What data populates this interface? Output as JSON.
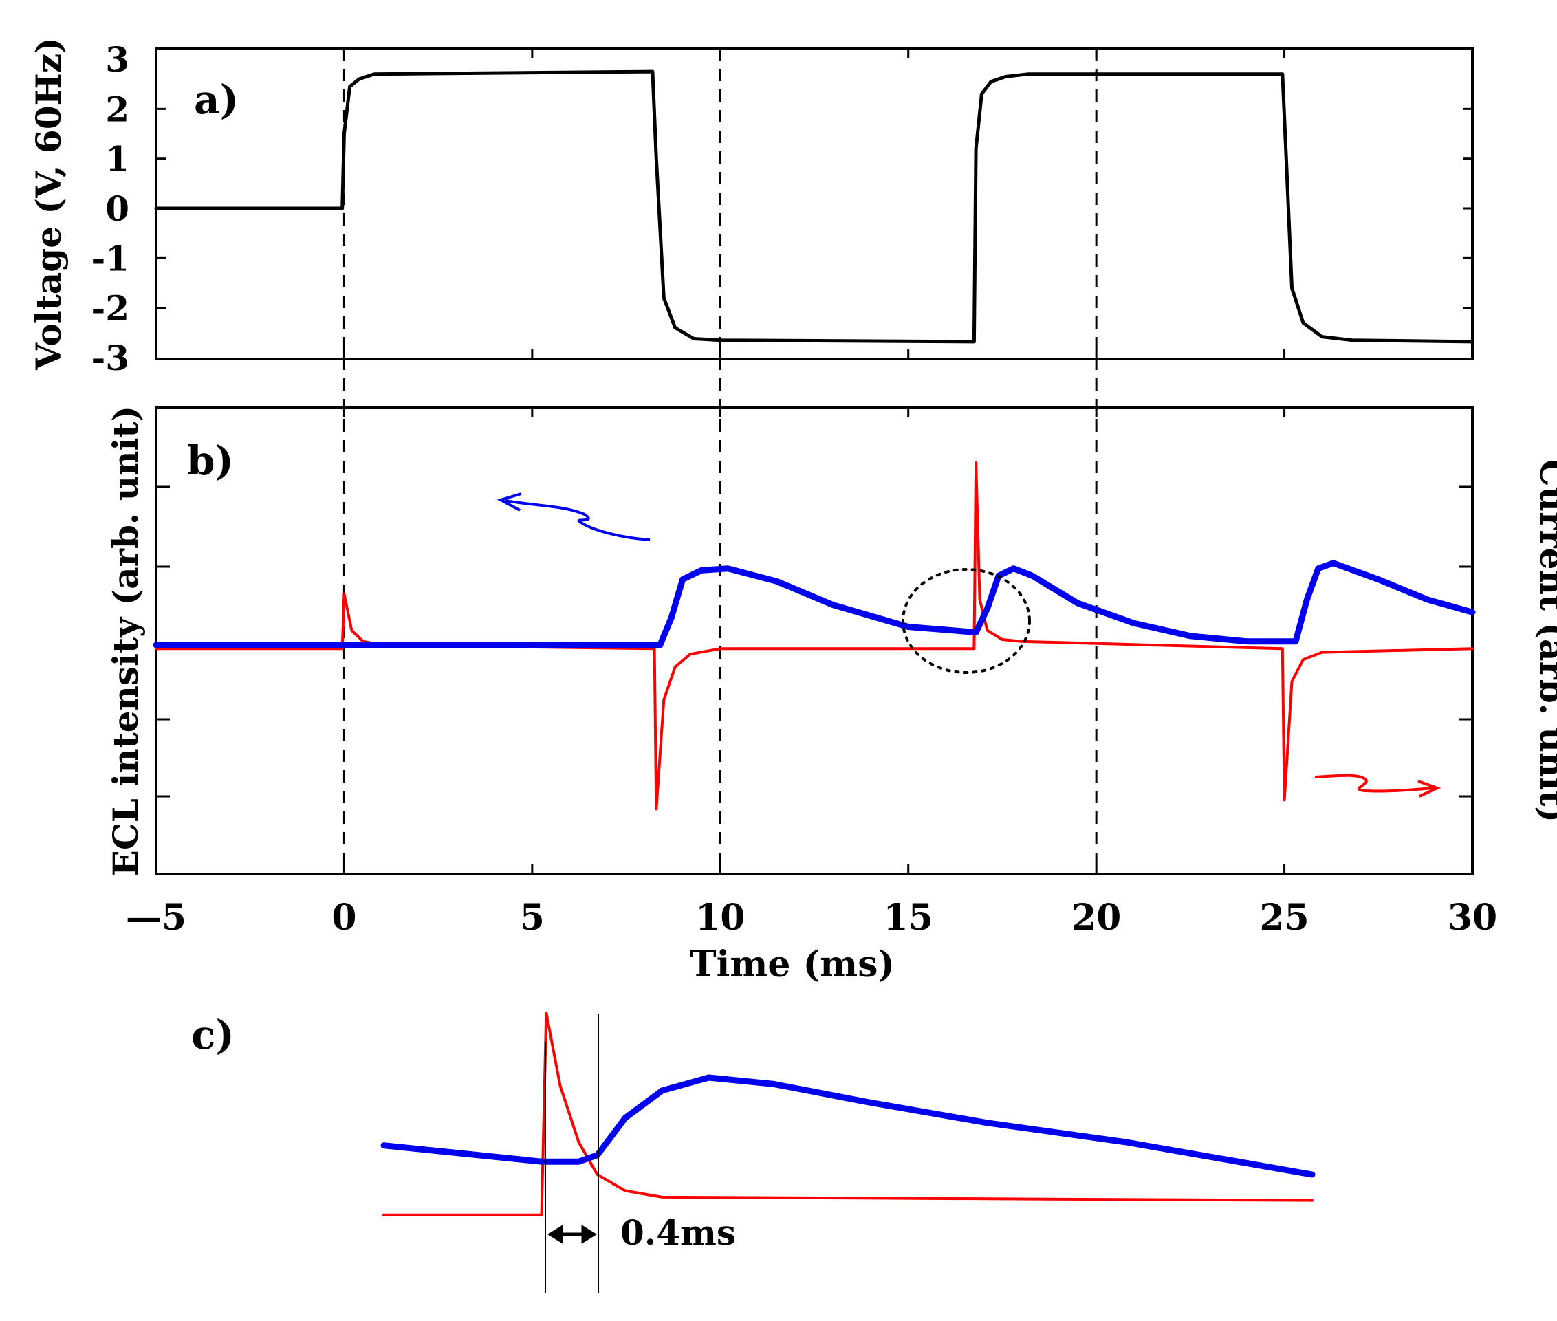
{
  "chart_data": [
    {
      "panel": "a)",
      "type": "line",
      "xlabel": "",
      "ylabel": "Voltage (V, 60Hz)",
      "xlim": [
        -5,
        30
      ],
      "ylim": [
        -3,
        3
      ],
      "yticks": [
        3,
        2,
        1,
        0,
        -1,
        -2,
        -3
      ],
      "grid": false,
      "reference_lines_x": [
        0,
        10,
        20
      ],
      "series": [
        {
          "name": "Voltage",
          "color": "#000000",
          "x": [
            -5,
            -0.05,
            0.0,
            0.15,
            0.4,
            0.8,
            8.2,
            8.3,
            8.5,
            8.8,
            9.3,
            10,
            16.75,
            16.8,
            16.95,
            17.2,
            17.6,
            18.2,
            24.95,
            25.05,
            25.2,
            25.5,
            26.0,
            26.8,
            30
          ],
          "y": [
            0,
            0,
            1.5,
            2.45,
            2.6,
            2.7,
            2.75,
            1.0,
            -1.8,
            -2.4,
            -2.62,
            -2.65,
            -2.68,
            1.2,
            2.3,
            2.55,
            2.65,
            2.7,
            2.7,
            1.0,
            -1.6,
            -2.3,
            -2.58,
            -2.65,
            -2.68
          ]
        }
      ]
    },
    {
      "panel": "b)",
      "type": "line",
      "xlabel": "Time (ms)",
      "ylabel": "ECL intensity (arb. unit)",
      "ylabel_right": "Current (arb. unit)",
      "xlim": [
        -5,
        30
      ],
      "ylim": [
        -1,
        1
      ],
      "xticks": [
        -5,
        0,
        5,
        10,
        15,
        20,
        25,
        30
      ],
      "xtick_labels": [
        "—5",
        "0",
        "5",
        "10",
        "15",
        "20",
        "25",
        "30"
      ],
      "grid": false,
      "reference_lines_x": [
        0,
        10,
        20
      ],
      "series": [
        {
          "name": "ECL intensity",
          "color": "#0000ee",
          "axis": "left",
          "x": [
            -5,
            8.4,
            8.7,
            9.0,
            9.5,
            10.2,
            11.5,
            13,
            15,
            16.8,
            17.1,
            17.4,
            17.8,
            18.3,
            19.5,
            21,
            22.5,
            24,
            25.3,
            25.6,
            25.9,
            26.3,
            27.5,
            28.8,
            30
          ],
          "y": [
            0,
            0,
            0.15,
            0.36,
            0.41,
            0.42,
            0.35,
            0.22,
            0.1,
            0.07,
            0.2,
            0.38,
            0.42,
            0.38,
            0.23,
            0.12,
            0.05,
            0.02,
            0.02,
            0.25,
            0.42,
            0.45,
            0.36,
            0.25,
            0.18
          ]
        },
        {
          "name": "Current",
          "color": "#ff0000",
          "axis": "right",
          "x": [
            -5,
            -0.05,
            0.0,
            0.2,
            0.5,
            1.0,
            8.25,
            8.3,
            8.5,
            8.8,
            9.2,
            10,
            16.75,
            16.8,
            16.9,
            17.1,
            17.5,
            18,
            24.95,
            25.0,
            25.2,
            25.5,
            26.0,
            30
          ],
          "y": [
            -0.02,
            -0.02,
            0.28,
            0.08,
            0.02,
            0.0,
            -0.02,
            -0.9,
            -0.3,
            -0.12,
            -0.05,
            -0.02,
            -0.02,
            1.0,
            0.25,
            0.08,
            0.03,
            0.02,
            -0.02,
            -0.85,
            -0.2,
            -0.08,
            -0.04,
            -0.02
          ]
        }
      ],
      "annotations": [
        {
          "text": "",
          "type": "arrow",
          "direction": "left",
          "color": "#0000ee",
          "refers_to": "ECL intensity"
        },
        {
          "text": "",
          "type": "arrow",
          "direction": "right",
          "color": "#ff0000",
          "refers_to": "Current"
        },
        {
          "text": "",
          "type": "dotted-circle",
          "x": 16.8,
          "y": 0.05
        }
      ]
    },
    {
      "panel": "c)",
      "type": "line",
      "title": "",
      "xlim": [
        0,
        10
      ],
      "ylim": [
        -0.4,
        1
      ],
      "grid": false,
      "series": [
        {
          "name": "ECL intensity",
          "color": "#0000ee",
          "x": [
            0,
            1.7,
            2.1,
            2.3,
            2.6,
            3.0,
            3.5,
            4.2,
            5.2,
            6.5,
            8.0,
            10
          ],
          "y": [
            0.18,
            0.08,
            0.08,
            0.12,
            0.35,
            0.52,
            0.6,
            0.56,
            0.45,
            0.32,
            0.2,
            0.0
          ]
        },
        {
          "name": "Current",
          "color": "#ff0000",
          "x": [
            0,
            1.7,
            1.75,
            1.9,
            2.1,
            2.3,
            2.6,
            3.0,
            10
          ],
          "y": [
            -0.25,
            -0.25,
            1.0,
            0.55,
            0.2,
            0.0,
            -0.1,
            -0.14,
            -0.16
          ]
        }
      ],
      "annotations": [
        {
          "text": "0.4ms",
          "type": "interval",
          "from_x": 1.75,
          "to_x": 2.3
        }
      ]
    }
  ],
  "labels": {
    "panel_a": "a)",
    "panel_b": "b)",
    "panel_c": "c)",
    "a_ylabel": "Voltage (V, 60Hz)",
    "b_ylabel_left": "ECL intensity (arb. unit)",
    "b_ylabel_right": "Current (arb. unit)",
    "xlabel": "Time (ms)",
    "interval": "0.4ms"
  },
  "colors": {
    "ecl": "#0000ee",
    "current": "#ff0000",
    "voltage": "#000000"
  }
}
